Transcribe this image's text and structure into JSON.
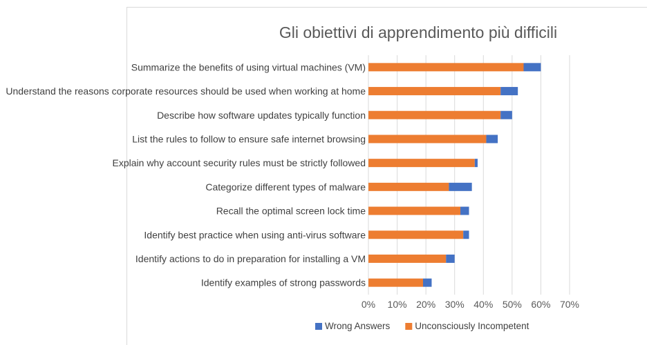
{
  "chart_data": {
    "type": "bar",
    "orientation": "horizontal",
    "stacked": true,
    "title": "Gli obiettivi di apprendimento più difficili",
    "categories": [
      "Summarize the benefits of using virtual machines (VM)",
      "Understand the reasons corporate resources should be used when working at home",
      "Describe how software updates typically function",
      "List the rules to follow to ensure safe internet browsing",
      "Explain why account security rules must be strictly followed",
      "Categorize different types of malware",
      "Recall the optimal screen lock time",
      "Identify best practice when using anti-virus software",
      "Identify actions to do in preparation for installing a VM",
      "Identify examples of strong passwords"
    ],
    "series": [
      {
        "name": "Unconsciously Incompetent",
        "color": "#ED7D31",
        "values": [
          0.54,
          0.46,
          0.46,
          0.41,
          0.37,
          0.28,
          0.32,
          0.33,
          0.27,
          0.19
        ]
      },
      {
        "name": "Wrong Answers",
        "color": "#4472C4",
        "values": [
          0.06,
          0.06,
          0.04,
          0.04,
          0.01,
          0.08,
          0.03,
          0.02,
          0.03,
          0.03
        ]
      }
    ],
    "xlim": [
      0,
      0.7
    ],
    "xticks": [
      "0%",
      "10%",
      "20%",
      "30%",
      "40%",
      "50%",
      "60%",
      "70%"
    ],
    "grid": true,
    "legend_position": "bottom",
    "legend": [
      {
        "name": "Wrong Answers",
        "color": "#4472C4"
      },
      {
        "name": "Unconsciously Incompetent",
        "color": "#ED7D31"
      }
    ]
  }
}
